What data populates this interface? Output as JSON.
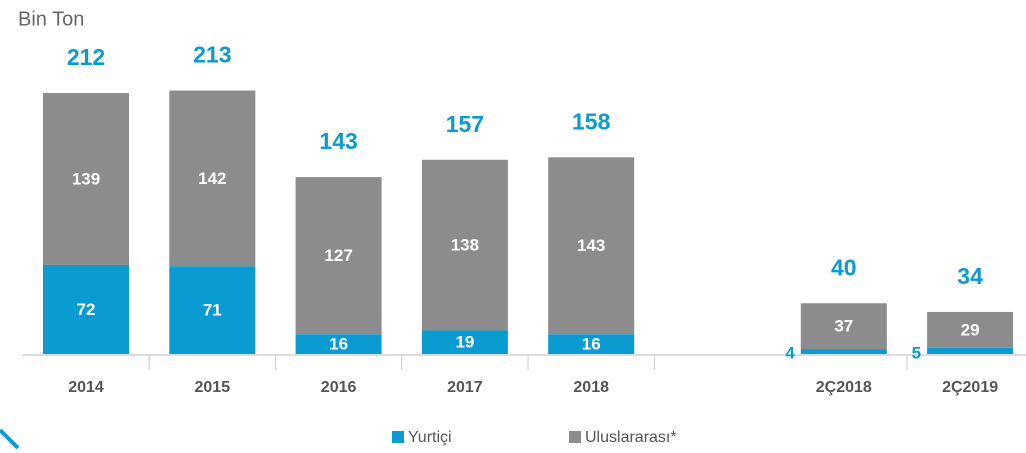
{
  "chart_data": {
    "type": "stacked_bar",
    "unit_label": "Bin Ton",
    "categories": [
      "2014",
      "2015",
      "2016",
      "2017",
      "2018",
      "2Ç2018",
      "2Ç2019"
    ],
    "series": [
      {
        "name": "Yurtiçi",
        "color": "#0a9bd3",
        "values": [
          72,
          71,
          16,
          19,
          16,
          4,
          5
        ]
      },
      {
        "name": "Uluslararası*",
        "color": "#8c8c8c",
        "values": [
          139,
          142,
          127,
          138,
          143,
          37,
          29
        ]
      }
    ],
    "totals": [
      212,
      213,
      143,
      157,
      158,
      40,
      34
    ],
    "total_color": "#0a9bd3"
  }
}
